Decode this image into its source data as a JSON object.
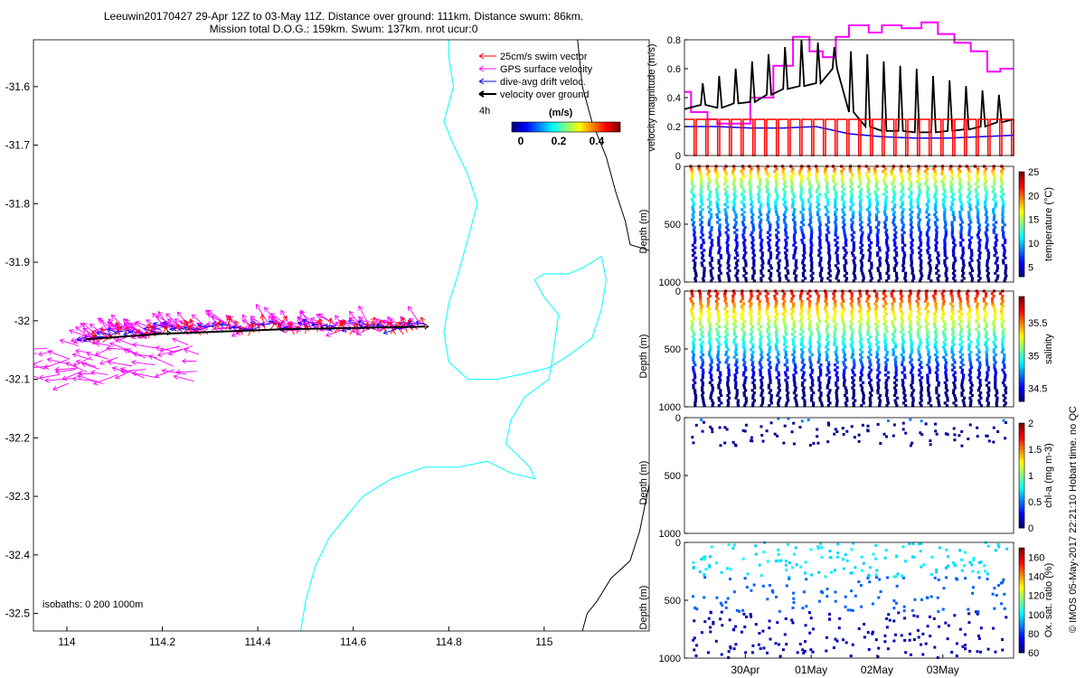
{
  "title": {
    "line1": "Leeuwin20170427 29-Apr 12Z to 03-May 11Z. Distance over ground: 111km. Distance swum: 86km.",
    "line2": "Mission total D.O.G.: 159km. Swum: 137km. nrot ucur:0"
  },
  "copyright": "© IMOS 05-May-2017 22:21:10 Hobart time. no QC",
  "colors": {
    "swim": "#ff0000",
    "gps": "#ff00ff",
    "drift": "#0000ff",
    "ground": "#000000",
    "coast": "#000000",
    "isobath": "#00ffff"
  },
  "chart_data": [
    {
      "id": "map",
      "type": "quiver-map",
      "xlim": [
        113.93,
        115.22
      ],
      "ylim": [
        -32.53,
        -31.52
      ],
      "xticks": [
        114,
        114.2,
        114.4,
        114.6,
        114.8,
        115
      ],
      "xtick_labels": [
        "114",
        "114.2",
        "114.4",
        "114.6",
        "114.8",
        "115"
      ],
      "yticks": [
        -31.6,
        -31.7,
        -31.8,
        -31.9,
        -32,
        -32.1,
        -32.2,
        -32.3,
        -32.4,
        -32.5
      ],
      "ytick_labels": [
        "-31.6",
        "-31.7",
        "-31.8",
        "-31.9",
        "-32",
        "-32.1",
        "-32.2",
        "-32.3",
        "-32.4",
        "-32.5"
      ],
      "legend": {
        "items": [
          "25cm/s swim vector",
          "GPS surface velocity",
          "dive-avg drift veloc.",
          "velocity over ground"
        ],
        "interval": "4h",
        "colorbar_title": "(m/s)",
        "colorbar_ticks": [
          "0",
          "0.2",
          "0.4"
        ],
        "colorbar_range": [
          0,
          0.5
        ]
      },
      "isobaths_label": "isobaths: 0   200  1000m",
      "track": {
        "start_lon": 114.75,
        "end_lon": 114.04,
        "lat": -32.01,
        "segment_step_lon": 0.012
      },
      "coastline": [
        [
          115.07,
          -31.52
        ],
        [
          115.08,
          -31.6
        ],
        [
          115.1,
          -31.66
        ],
        [
          115.13,
          -31.72
        ],
        [
          115.15,
          -31.78
        ],
        [
          115.17,
          -31.83
        ],
        [
          115.18,
          -31.87
        ],
        [
          115.22,
          -31.88
        ]
      ],
      "coastline_south": [
        [
          115.22,
          -32.28
        ],
        [
          115.21,
          -32.32
        ],
        [
          115.2,
          -32.36
        ],
        [
          115.18,
          -32.41
        ],
        [
          115.14,
          -32.44
        ],
        [
          115.11,
          -32.48
        ],
        [
          115.09,
          -32.5
        ],
        [
          115.08,
          -32.53
        ]
      ],
      "isobath_200": [
        [
          114.8,
          -31.52
        ],
        [
          114.8,
          -31.55
        ],
        [
          114.81,
          -31.6
        ],
        [
          114.79,
          -31.66
        ],
        [
          114.81,
          -31.7
        ],
        [
          114.84,
          -31.75
        ],
        [
          114.86,
          -31.8
        ],
        [
          114.84,
          -31.86
        ],
        [
          114.82,
          -31.92
        ],
        [
          114.8,
          -31.97
        ],
        [
          114.79,
          -32.02
        ],
        [
          114.8,
          -32.07
        ],
        [
          114.84,
          -32.1
        ],
        [
          114.9,
          -32.1
        ],
        [
          114.96,
          -32.09
        ],
        [
          115.01,
          -32.08
        ],
        [
          115.05,
          -32.06
        ],
        [
          115.1,
          -32.03
        ],
        [
          115.12,
          -31.98
        ],
        [
          115.13,
          -31.93
        ],
        [
          115.12,
          -31.89
        ],
        [
          115.08,
          -31.91
        ],
        [
          115.05,
          -31.92
        ],
        [
          115.0,
          -31.92
        ],
        [
          114.98,
          -31.93
        ],
        [
          115.0,
          -31.96
        ],
        [
          115.03,
          -31.99
        ],
        [
          115.02,
          -32.05
        ],
        [
          115.01,
          -32.1
        ],
        [
          114.96,
          -32.13
        ],
        [
          114.93,
          -32.17
        ],
        [
          114.92,
          -32.21
        ],
        [
          114.97,
          -32.25
        ],
        [
          114.98,
          -32.27
        ],
        [
          114.93,
          -32.26
        ],
        [
          114.88,
          -32.24
        ],
        [
          114.82,
          -32.25
        ],
        [
          114.75,
          -32.25
        ],
        [
          114.68,
          -32.27
        ],
        [
          114.62,
          -32.3
        ],
        [
          114.58,
          -32.34
        ],
        [
          114.55,
          -32.37
        ],
        [
          114.52,
          -32.42
        ],
        [
          114.5,
          -32.48
        ],
        [
          114.49,
          -32.53
        ]
      ]
    },
    {
      "id": "speed",
      "type": "line",
      "ylabel": "velocity magnitude (m/s)",
      "ylim": [
        0,
        0.8
      ],
      "yticks": [
        "0",
        "0.2",
        "0.4",
        "0.6",
        "0.8"
      ],
      "series": [
        {
          "name": "GPS surface velocity",
          "color": "#ff00ff",
          "x": [
            0,
            0.02,
            0.02,
            0.07,
            0.07,
            0.1,
            0.1,
            0.2,
            0.2,
            0.27,
            0.27,
            0.33,
            0.33,
            0.38,
            0.38,
            0.42,
            0.42,
            0.46,
            0.46,
            0.5,
            0.5,
            0.56,
            0.56,
            0.6,
            0.6,
            0.66,
            0.66,
            0.72,
            0.72,
            0.77,
            0.77,
            0.82,
            0.82,
            0.87,
            0.87,
            0.92,
            0.92,
            0.96,
            0.96,
            1.0
          ],
          "values": [
            0.44,
            0.44,
            0.3,
            0.3,
            0.25,
            0.25,
            0.22,
            0.22,
            0.4,
            0.4,
            0.62,
            0.62,
            0.82,
            0.82,
            0.72,
            0.72,
            0.68,
            0.68,
            0.82,
            0.82,
            0.9,
            0.9,
            0.85,
            0.85,
            0.9,
            0.9,
            0.88,
            0.88,
            0.92,
            0.92,
            0.84,
            0.84,
            0.78,
            0.78,
            0.72,
            0.72,
            0.58,
            0.58,
            0.6,
            0.6
          ]
        },
        {
          "name": "velocity over ground",
          "color": "#000000",
          "x": [
            0,
            0.05,
            0.1,
            0.15,
            0.2,
            0.25,
            0.3,
            0.35,
            0.4,
            0.45,
            0.5,
            0.55,
            0.6,
            0.65,
            0.7,
            0.75,
            0.8,
            0.85,
            0.9,
            0.95,
            1.0
          ],
          "values": [
            0.32,
            0.35,
            0.33,
            0.36,
            0.37,
            0.42,
            0.46,
            0.48,
            0.5,
            0.6,
            0.3,
            0.2,
            0.17,
            0.17,
            0.16,
            0.16,
            0.17,
            0.18,
            0.2,
            0.23,
            0.25
          ],
          "spikes": [
            0.45,
            0.5,
            0.55,
            0.6,
            0.65,
            0.7,
            0.75,
            0.8,
            0.78,
            0.75,
            0.72,
            0.7,
            0.65,
            0.62,
            0.6,
            0.55,
            0.52,
            0.48,
            0.45,
            0.42,
            0.4
          ]
        },
        {
          "name": "dive-avg drift veloc.",
          "color": "#0000ff",
          "x": [
            0,
            0.1,
            0.2,
            0.3,
            0.4,
            0.5,
            0.6,
            0.7,
            0.8,
            0.9,
            1.0
          ],
          "values": [
            0.2,
            0.2,
            0.19,
            0.19,
            0.2,
            0.15,
            0.13,
            0.12,
            0.12,
            0.13,
            0.14
          ]
        },
        {
          "name": "25cm/s swim vector",
          "color": "#ff0000",
          "level": 0.25,
          "cycles": 28
        }
      ]
    },
    {
      "id": "temperature",
      "type": "scatter-profile",
      "ylabel": "Depth (m)",
      "ylim": [
        1000,
        0
      ],
      "yticks": [
        "0",
        "500",
        "1000"
      ],
      "profiles": 38,
      "colorbar": {
        "label": "temperature (°C)",
        "ticks": [
          "5",
          "10",
          "15",
          "20",
          "25"
        ],
        "range": [
          3,
          25
        ]
      }
    },
    {
      "id": "salinity",
      "type": "scatter-profile",
      "ylabel": "Depth (m)",
      "ylim": [
        1000,
        0
      ],
      "yticks": [
        "0",
        "500",
        "1000"
      ],
      "profiles": 38,
      "colorbar": {
        "label": "salinity",
        "ticks": [
          "34.5",
          "35",
          "35.5"
        ],
        "range": [
          34.3,
          35.9
        ]
      }
    },
    {
      "id": "chla",
      "type": "scatter-profile",
      "ylabel": "Depth (m)",
      "ylim": [
        1000,
        0
      ],
      "yticks": [
        "0",
        "500",
        "1000"
      ],
      "profiles": 38,
      "colorbar": {
        "label": "chl-a (mg m-3)",
        "ticks": [
          "0",
          "0.5",
          "1",
          "1.5",
          "2"
        ],
        "range": [
          0,
          2
        ]
      }
    },
    {
      "id": "oxygen",
      "type": "scatter-profile",
      "ylabel": "Depth (m)",
      "ylim": [
        1000,
        0
      ],
      "yticks": [
        "0",
        "500",
        "1000"
      ],
      "profiles": 38,
      "colorbar": {
        "label": "Ox. sat. ratio (%)",
        "ticks": [
          "60",
          "80",
          "100",
          "120",
          "140",
          "160"
        ],
        "range": [
          60,
          170
        ]
      },
      "xtick_labels": [
        "30Apr",
        "01May",
        "02May",
        "03May"
      ],
      "xticks_frac": [
        0.185,
        0.385,
        0.585,
        0.785
      ]
    }
  ]
}
